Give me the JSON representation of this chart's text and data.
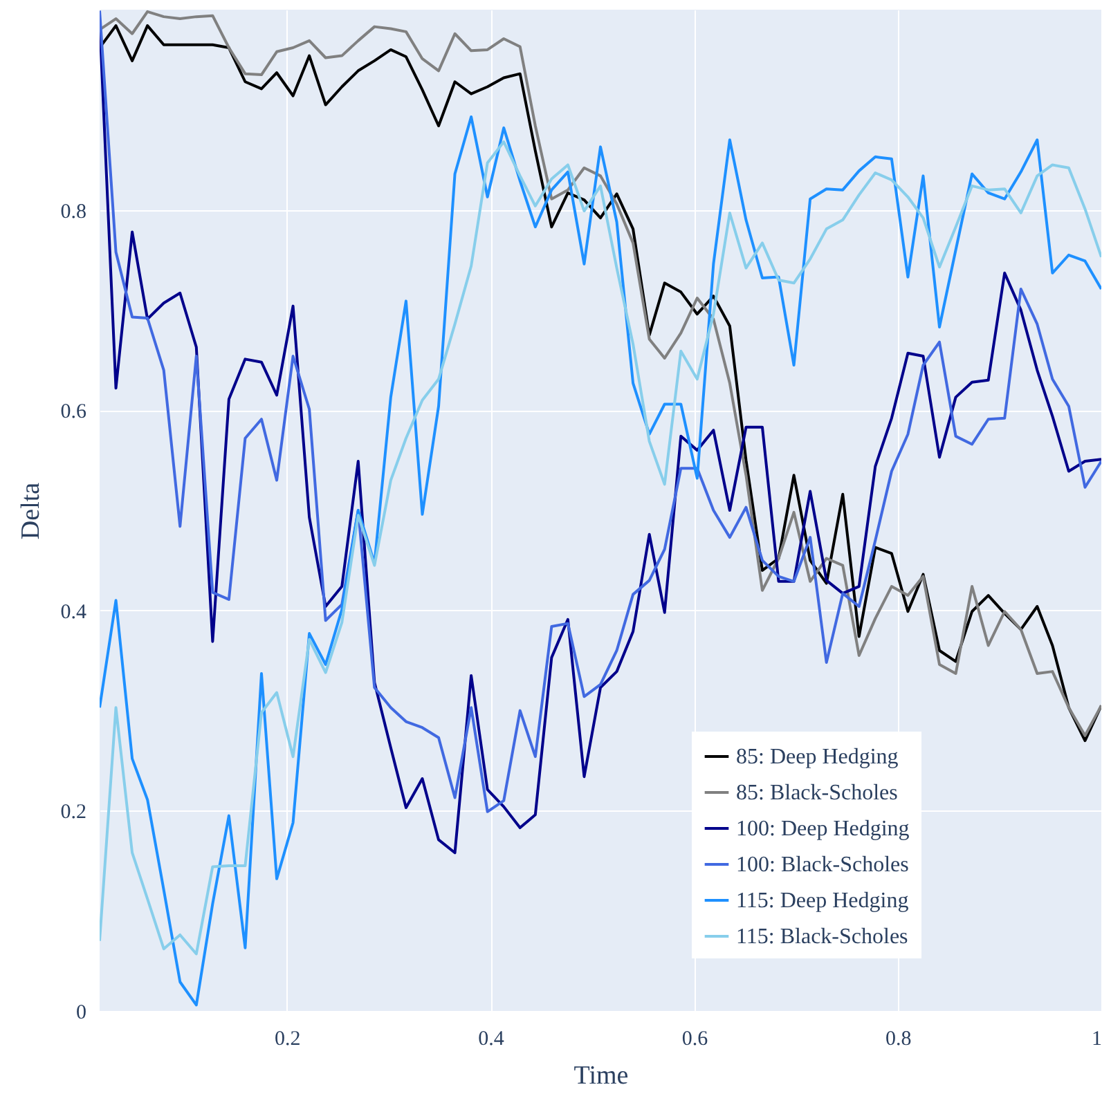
{
  "chart_data": {
    "type": "line",
    "xlabel": "Time",
    "ylabel": "Delta",
    "xlim": [
      0.016,
      1
    ],
    "ylim": [
      0,
      1
    ],
    "xticks": [
      0.2,
      0.4,
      0.6,
      0.8,
      1
    ],
    "yticks": [
      0,
      0.2,
      0.4,
      0.6,
      0.8
    ],
    "grid": true,
    "legend": "bottom right",
    "line_style": "solid",
    "x": [
      0.016,
      0.032,
      0.048,
      0.063,
      0.079,
      0.095,
      0.111,
      0.127,
      0.143,
      0.159,
      0.175,
      0.19,
      0.206,
      0.222,
      0.238,
      0.254,
      0.27,
      0.286,
      0.302,
      0.317,
      0.333,
      0.349,
      0.365,
      0.381,
      0.397,
      0.413,
      0.429,
      0.444,
      0.46,
      0.476,
      0.492,
      0.508,
      0.524,
      0.54,
      0.556,
      0.571,
      0.587,
      0.603,
      0.619,
      0.635,
      0.651,
      0.667,
      0.683,
      0.698,
      0.714,
      0.73,
      0.746,
      0.762,
      0.778,
      0.794,
      0.81,
      0.825,
      0.841,
      0.857,
      0.873,
      0.889,
      0.905,
      0.921,
      0.937,
      0.952,
      0.968,
      0.984,
      1
    ],
    "series": [
      {
        "name": "85: Deep Hedging",
        "color": "#000000",
        "values": [
          0.962,
          0.984,
          0.949,
          0.984,
          0.965,
          0.965,
          0.965,
          0.965,
          0.962,
          0.928,
          0.921,
          0.937,
          0.914,
          0.954,
          0.905,
          0.923,
          0.939,
          0.949,
          0.96,
          0.953,
          0.92,
          0.884,
          0.928,
          0.916,
          0.923,
          0.932,
          0.936,
          0.859,
          0.783,
          0.817,
          0.81,
          0.792,
          0.816,
          0.781,
          0.675,
          0.727,
          0.718,
          0.696,
          0.714,
          0.684,
          0.55,
          0.44,
          0.452,
          0.535,
          0.45,
          0.427,
          0.516,
          0.374,
          0.463,
          0.457,
          0.399,
          0.436,
          0.36,
          0.349,
          0.399,
          0.415,
          0.397,
          0.381,
          0.404,
          0.365,
          0.303,
          0.27,
          0.305
        ]
      },
      {
        "name": "85: Black-Scholes",
        "color": "#808080",
        "values": [
          0.98,
          0.991,
          0.976,
          0.998,
          0.993,
          0.991,
          0.993,
          0.994,
          0.962,
          0.936,
          0.935,
          0.958,
          0.962,
          0.969,
          0.952,
          0.954,
          0.969,
          0.983,
          0.981,
          0.978,
          0.951,
          0.939,
          0.976,
          0.959,
          0.96,
          0.971,
          0.963,
          0.884,
          0.811,
          0.82,
          0.842,
          0.834,
          0.806,
          0.767,
          0.671,
          0.652,
          0.677,
          0.712,
          0.691,
          0.627,
          0.535,
          0.42,
          0.452,
          0.498,
          0.429,
          0.452,
          0.445,
          0.355,
          0.392,
          0.424,
          0.415,
          0.434,
          0.346,
          0.337,
          0.424,
          0.365,
          0.399,
          0.381,
          0.337,
          0.339,
          0.303,
          0.275,
          0.305
        ]
      },
      {
        "name": "100: Deep Hedging",
        "color": "#00008b",
        "values": [
          0.99,
          0.622,
          0.778,
          0.691,
          0.707,
          0.717,
          0.663,
          0.369,
          0.611,
          0.651,
          0.648,
          0.615,
          0.704,
          0.493,
          0.404,
          0.424,
          0.549,
          0.328,
          0.263,
          0.203,
          0.232,
          0.171,
          0.158,
          0.335,
          0.221,
          0.204,
          0.183,
          0.196,
          0.353,
          0.391,
          0.234,
          0.323,
          0.339,
          0.379,
          0.476,
          0.398,
          0.574,
          0.56,
          0.58,
          0.5,
          0.583,
          0.583,
          0.429,
          0.429,
          0.519,
          0.43,
          0.417,
          0.424,
          0.544,
          0.592,
          0.657,
          0.654,
          0.553,
          0.613,
          0.628,
          0.63,
          0.737,
          0.7,
          0.64,
          0.594,
          0.539,
          0.549,
          0.551
        ]
      },
      {
        "name": "100: Black-Scholes",
        "color": "#4169e1",
        "values": [
          0.999,
          0.758,
          0.693,
          0.692,
          0.64,
          0.484,
          0.654,
          0.418,
          0.411,
          0.572,
          0.591,
          0.53,
          0.654,
          0.601,
          0.39,
          0.406,
          0.5,
          0.323,
          0.303,
          0.289,
          0.283,
          0.273,
          0.213,
          0.303,
          0.199,
          0.21,
          0.3,
          0.254,
          0.384,
          0.387,
          0.314,
          0.326,
          0.36,
          0.416,
          0.43,
          0.461,
          0.542,
          0.542,
          0.5,
          0.473,
          0.503,
          0.45,
          0.434,
          0.429,
          0.473,
          0.348,
          0.417,
          0.404,
          0.47,
          0.539,
          0.576,
          0.645,
          0.668,
          0.574,
          0.566,
          0.591,
          0.592,
          0.721,
          0.686,
          0.631,
          0.604,
          0.523,
          0.549
        ]
      },
      {
        "name": "115: Deep Hedging",
        "color": "#1e90ff",
        "values": [
          0.303,
          0.41,
          0.252,
          0.211,
          0.121,
          0.029,
          0.006,
          0.107,
          0.195,
          0.063,
          0.337,
          0.132,
          0.188,
          0.377,
          0.346,
          0.401,
          0.5,
          0.447,
          0.613,
          0.709,
          0.496,
          0.604,
          0.836,
          0.893,
          0.813,
          0.882,
          0.829,
          0.783,
          0.82,
          0.838,
          0.746,
          0.863,
          0.788,
          0.627,
          0.576,
          0.606,
          0.606,
          0.532,
          0.746,
          0.87,
          0.79,
          0.732,
          0.733,
          0.645,
          0.811,
          0.821,
          0.82,
          0.839,
          0.853,
          0.851,
          0.733,
          0.834,
          0.683,
          0.76,
          0.836,
          0.817,
          0.811,
          0.838,
          0.87,
          0.737,
          0.755,
          0.749,
          0.721
        ]
      },
      {
        "name": "115: Black-Scholes",
        "color": "#87ceeb",
        "values": [
          0.07,
          0.303,
          0.158,
          0.112,
          0.062,
          0.076,
          0.057,
          0.144,
          0.145,
          0.145,
          0.298,
          0.318,
          0.254,
          0.371,
          0.338,
          0.388,
          0.495,
          0.445,
          0.53,
          0.572,
          0.61,
          0.631,
          0.686,
          0.744,
          0.847,
          0.868,
          0.834,
          0.804,
          0.831,
          0.845,
          0.799,
          0.824,
          0.742,
          0.666,
          0.569,
          0.526,
          0.659,
          0.631,
          0.696,
          0.797,
          0.742,
          0.767,
          0.73,
          0.727,
          0.751,
          0.781,
          0.79,
          0.815,
          0.837,
          0.83,
          0.813,
          0.792,
          0.743,
          0.783,
          0.824,
          0.82,
          0.821,
          0.797,
          0.834,
          0.845,
          0.842,
          0.801,
          0.753
        ]
      }
    ]
  }
}
